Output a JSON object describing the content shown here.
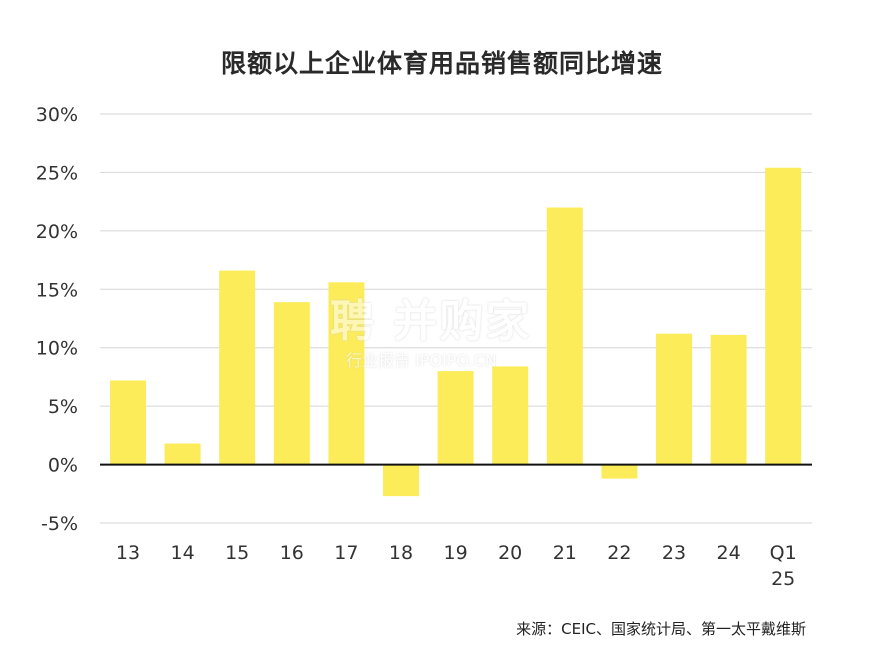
{
  "chart_data": {
    "type": "bar",
    "title": "限额以上企业体育用品销售额同比增速",
    "categories": [
      "13",
      "14",
      "15",
      "16",
      "17",
      "18",
      "19",
      "20",
      "21",
      "22",
      "23",
      "24",
      "Q1 25"
    ],
    "category_lines": [
      [
        "13"
      ],
      [
        "14"
      ],
      [
        "15"
      ],
      [
        "16"
      ],
      [
        "17"
      ],
      [
        "18"
      ],
      [
        "19"
      ],
      [
        "20"
      ],
      [
        "21"
      ],
      [
        "22"
      ],
      [
        "23"
      ],
      [
        "24"
      ],
      [
        "Q1",
        "25"
      ]
    ],
    "values": [
      7.2,
      1.8,
      16.6,
      13.9,
      15.6,
      -2.7,
      8.0,
      8.4,
      22.0,
      -1.2,
      11.2,
      11.1,
      25.4
    ],
    "ylim": [
      -5,
      30
    ],
    "yticks": [
      -5,
      0,
      5,
      10,
      15,
      20,
      25,
      30
    ],
    "ytick_labels": [
      "-5%",
      "0%",
      "5%",
      "10%",
      "15%",
      "20%",
      "25%",
      "30%"
    ],
    "xlabel": "",
    "ylabel": "",
    "grid": true,
    "bar_color": "#fcec5a",
    "grid_color": "#d6d6d6"
  },
  "source": "来源：CEIC、国家统计局、第一太平戴维斯",
  "watermark": {
    "main": "聘 并购家",
    "sub": "行业报告 IPOIPO.CN"
  }
}
